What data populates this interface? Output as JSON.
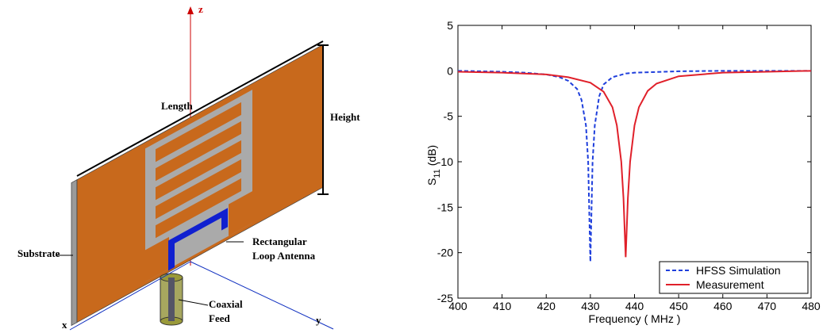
{
  "diagram": {
    "axes": {
      "z": "z",
      "x": "x",
      "y": "y"
    },
    "labels": {
      "length": "Length",
      "height": "Height",
      "substrate": "Substrate",
      "loop": [
        "Rectangular",
        "Loop Antenna"
      ],
      "feed": [
        "Coaxial",
        "Feed"
      ]
    }
  },
  "chart_data": {
    "type": "line",
    "x_label": "Frequency ( MHz )",
    "y_label": [
      "S",
      "11",
      "(dB)"
    ],
    "xlim": [
      400,
      480
    ],
    "xticks": [
      400,
      410,
      420,
      430,
      440,
      450,
      460,
      470,
      480
    ],
    "ylim": [
      -25,
      5
    ],
    "yticks": [
      -25,
      -20,
      -15,
      -10,
      -5,
      0,
      5
    ],
    "grid": false,
    "legend": "lower right",
    "series": [
      {
        "name": "HFSS Simulation",
        "color": "#1f3fdc",
        "style": "dashed",
        "x": [
          400,
          410,
          415,
          420,
          423,
          425,
          427,
          428,
          429,
          429.5,
          430,
          430.5,
          431,
          432,
          433,
          435,
          438,
          440,
          450,
          460,
          480
        ],
        "values": [
          0,
          -0.1,
          -0.2,
          -0.4,
          -0.7,
          -1.1,
          -2,
          -3.2,
          -6,
          -10,
          -21,
          -10,
          -6,
          -2.8,
          -1.5,
          -0.7,
          -0.3,
          -0.2,
          -0.05,
          0,
          0
        ]
      },
      {
        "name": "Measurement",
        "color": "#e0202a",
        "style": "solid",
        "x": [
          400,
          410,
          420,
          425,
          430,
          433,
          435,
          436,
          437,
          437.5,
          438,
          438.5,
          439,
          440,
          441,
          443,
          445,
          450,
          460,
          470,
          480
        ],
        "values": [
          -0.1,
          -0.2,
          -0.4,
          -0.7,
          -1.3,
          -2.3,
          -4,
          -6,
          -10,
          -14,
          -20.5,
          -14,
          -10,
          -6,
          -4,
          -2.2,
          -1.4,
          -0.6,
          -0.2,
          -0.1,
          0
        ]
      }
    ]
  }
}
